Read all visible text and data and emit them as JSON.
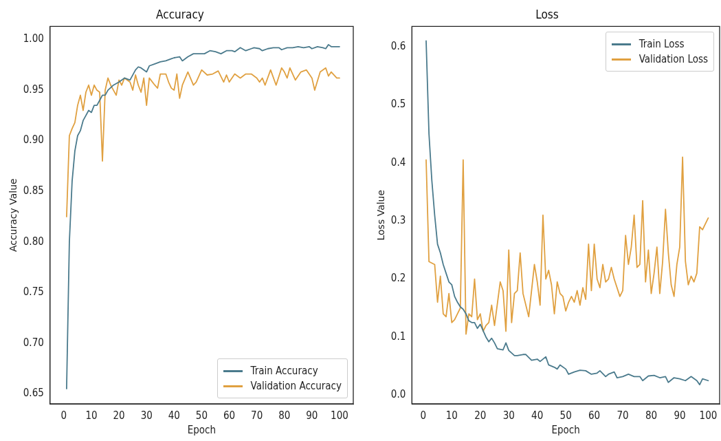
{
  "chart_data": [
    {
      "type": "line",
      "title": "Accuracy",
      "xlabel": "Epoch",
      "ylabel": "Accuracy Value",
      "xlim": [
        -5,
        105
      ],
      "xticks": [
        0,
        10,
        20,
        30,
        40,
        50,
        60,
        70,
        80,
        90,
        100
      ],
      "ylim": [
        0.64,
        1.013
      ],
      "yticks": [
        0.65,
        {
          "value": 0.7,
          "label": "0.70"
        },
        0.75,
        {
          "value": 0.8,
          "label": "0.80"
        },
        0.85,
        {
          "value": 0.9,
          "label": "0.90"
        },
        0.95,
        {
          "value": 1.0,
          "label": "1.00"
        }
      ],
      "grid": false,
      "legend": "bottom right",
      "marker": "none",
      "line_style": "solid",
      "series": [
        {
          "name": "Train Accuracy",
          "color": "#4a7a8c",
          "x": [
            1,
            2,
            3,
            4,
            5,
            6,
            7,
            8,
            9,
            10,
            11,
            12,
            13,
            14,
            15,
            16,
            18,
            20,
            22,
            24,
            26,
            27,
            28,
            30,
            31,
            33,
            35,
            37,
            39,
            40,
            42,
            43,
            45,
            47,
            49,
            51,
            53,
            55,
            57,
            59,
            61,
            62,
            64,
            66,
            68,
            69,
            71,
            72,
            74,
            76,
            78,
            79,
            81,
            83,
            85,
            87,
            89,
            90,
            92,
            94,
            95,
            96,
            97,
            99,
            100
          ],
          "values": [
            0.655,
            0.8,
            0.86,
            0.89,
            0.905,
            0.91,
            0.92,
            0.925,
            0.93,
            0.928,
            0.935,
            0.935,
            0.94,
            0.945,
            0.945,
            0.95,
            0.955,
            0.958,
            0.962,
            0.96,
            0.97,
            0.973,
            0.972,
            0.968,
            0.974,
            0.976,
            0.978,
            0.979,
            0.981,
            0.982,
            0.983,
            0.979,
            0.983,
            0.986,
            0.986,
            0.986,
            0.989,
            0.988,
            0.986,
            0.989,
            0.989,
            0.988,
            0.992,
            0.989,
            0.991,
            0.992,
            0.991,
            0.989,
            0.991,
            0.992,
            0.992,
            0.99,
            0.992,
            0.992,
            0.993,
            0.992,
            0.993,
            0.991,
            0.993,
            0.992,
            0.991,
            0.995,
            0.993,
            0.993,
            0.993
          ]
        },
        {
          "name": "Validation Accuracy",
          "color": "#e0a040",
          "x": [
            1,
            2,
            3,
            4,
            5,
            6,
            7,
            8,
            9,
            10,
            11,
            12,
            13,
            14,
            15,
            16,
            17,
            18,
            19,
            20,
            21,
            22,
            24,
            25,
            26,
            27,
            28,
            29,
            30,
            31,
            33,
            34,
            35,
            37,
            38,
            39,
            40,
            41,
            42,
            43,
            45,
            47,
            48,
            50,
            52,
            54,
            56,
            58,
            59,
            60,
            62,
            64,
            66,
            68,
            70,
            71,
            72,
            73,
            75,
            77,
            79,
            80,
            81,
            82,
            84,
            86,
            88,
            90,
            91,
            93,
            95,
            96,
            97,
            99,
            100
          ],
          "values": [
            0.825,
            0.905,
            0.912,
            0.918,
            0.935,
            0.945,
            0.93,
            0.948,
            0.955,
            0.945,
            0.955,
            0.95,
            0.948,
            0.88,
            0.95,
            0.962,
            0.955,
            0.95,
            0.945,
            0.96,
            0.955,
            0.962,
            0.958,
            0.95,
            0.965,
            0.955,
            0.948,
            0.962,
            0.935,
            0.962,
            0.955,
            0.952,
            0.966,
            0.966,
            0.958,
            0.952,
            0.95,
            0.966,
            0.942,
            0.955,
            0.968,
            0.955,
            0.958,
            0.97,
            0.965,
            0.966,
            0.969,
            0.958,
            0.965,
            0.958,
            0.966,
            0.962,
            0.966,
            0.966,
            0.962,
            0.958,
            0.962,
            0.955,
            0.97,
            0.955,
            0.972,
            0.968,
            0.962,
            0.972,
            0.96,
            0.968,
            0.97,
            0.962,
            0.95,
            0.968,
            0.972,
            0.964,
            0.968,
            0.962,
            0.962
          ]
        }
      ]
    },
    {
      "type": "line",
      "title": "Loss",
      "xlabel": "Epoch",
      "ylabel": "Loss Value",
      "xlim": [
        -4,
        104
      ],
      "xticks": [
        0,
        10,
        20,
        30,
        40,
        50,
        60,
        70,
        80,
        90,
        100
      ],
      "ylim": [
        -0.015,
        0.635
      ],
      "yticks": [
        {
          "value": 0,
          "label": "0.0"
        },
        0.1,
        0.2,
        0.3,
        0.4,
        0.5,
        0.6
      ],
      "grid": false,
      "legend": "top right",
      "marker": "none",
      "line_style": "solid",
      "series": [
        {
          "name": "Train Loss",
          "color": "#4a7a8c",
          "x": [
            1,
            2,
            3,
            4,
            5,
            6,
            7,
            8,
            9,
            10,
            11,
            12,
            13,
            14,
            15,
            16,
            17,
            18,
            19,
            20,
            22,
            23,
            24,
            25,
            26,
            28,
            29,
            30,
            32,
            33,
            35,
            36,
            38,
            40,
            41,
            43,
            44,
            46,
            47,
            48,
            50,
            51,
            53,
            55,
            57,
            59,
            61,
            62,
            64,
            65,
            67,
            68,
            70,
            72,
            74,
            76,
            77,
            79,
            81,
            83,
            85,
            86,
            88,
            90,
            92,
            94,
            96,
            97,
            98,
            100
          ],
          "values": [
            0.61,
            0.45,
            0.37,
            0.31,
            0.26,
            0.245,
            0.225,
            0.21,
            0.195,
            0.19,
            0.17,
            0.16,
            0.152,
            0.148,
            0.14,
            0.128,
            0.125,
            0.125,
            0.115,
            0.122,
            0.1,
            0.092,
            0.098,
            0.09,
            0.08,
            0.078,
            0.09,
            0.077,
            0.068,
            0.068,
            0.07,
            0.07,
            0.06,
            0.062,
            0.058,
            0.066,
            0.052,
            0.048,
            0.045,
            0.052,
            0.045,
            0.036,
            0.04,
            0.043,
            0.042,
            0.036,
            0.038,
            0.042,
            0.032,
            0.036,
            0.04,
            0.03,
            0.032,
            0.036,
            0.032,
            0.032,
            0.025,
            0.033,
            0.034,
            0.03,
            0.032,
            0.022,
            0.03,
            0.028,
            0.025,
            0.032,
            0.025,
            0.018,
            0.028,
            0.025
          ]
        },
        {
          "name": "Validation Loss",
          "color": "#e0a040",
          "x": [
            1,
            2,
            4,
            5,
            6,
            7,
            8,
            9,
            10,
            11,
            12,
            13,
            14,
            15,
            16,
            17,
            18,
            19,
            20,
            21,
            22,
            23,
            24,
            25,
            27,
            28,
            29,
            30,
            31,
            32,
            33,
            34,
            35,
            37,
            39,
            40,
            41,
            42,
            43,
            44,
            45,
            46,
            47,
            48,
            49,
            50,
            51,
            52,
            53,
            54,
            55,
            56,
            57,
            58,
            59,
            60,
            61,
            62,
            63,
            64,
            65,
            66,
            67,
            69,
            70,
            71,
            72,
            73,
            74,
            75,
            76,
            77,
            78,
            79,
            80,
            81,
            82,
            83,
            84,
            85,
            86,
            87,
            88,
            89,
            90,
            91,
            92,
            93,
            94,
            95,
            96,
            97,
            98,
            100
          ],
          "values": [
            0.405,
            0.23,
            0.225,
            0.16,
            0.205,
            0.14,
            0.135,
            0.175,
            0.125,
            0.13,
            0.14,
            0.15,
            0.405,
            0.105,
            0.14,
            0.135,
            0.2,
            0.13,
            0.14,
            0.11,
            0.12,
            0.125,
            0.155,
            0.12,
            0.195,
            0.18,
            0.11,
            0.25,
            0.125,
            0.175,
            0.18,
            0.245,
            0.175,
            0.135,
            0.225,
            0.195,
            0.155,
            0.31,
            0.2,
            0.215,
            0.19,
            0.14,
            0.195,
            0.175,
            0.17,
            0.145,
            0.16,
            0.17,
            0.16,
            0.18,
            0.155,
            0.185,
            0.165,
            0.26,
            0.18,
            0.26,
            0.2,
            0.185,
            0.225,
            0.195,
            0.2,
            0.22,
            0.2,
            0.17,
            0.18,
            0.275,
            0.225,
            0.255,
            0.31,
            0.22,
            0.225,
            0.335,
            0.195,
            0.25,
            0.175,
            0.21,
            0.255,
            0.175,
            0.23,
            0.32,
            0.245,
            0.19,
            0.17,
            0.225,
            0.255,
            0.41,
            0.23,
            0.19,
            0.205,
            0.195,
            0.21,
            0.29,
            0.285,
            0.305
          ]
        }
      ]
    }
  ]
}
